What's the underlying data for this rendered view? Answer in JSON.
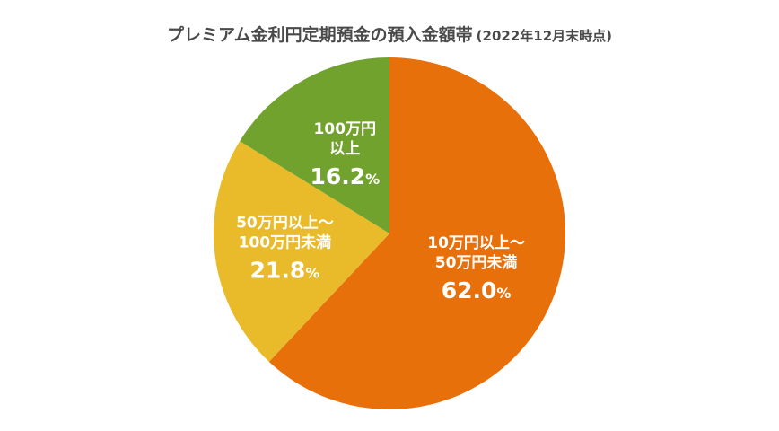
{
  "chart_data": {
    "type": "pie",
    "title": "プレミアム金利円定期預金の預入金額帯",
    "subtitle": "(2022年12月末時点)",
    "slices": [
      {
        "label_lines": [
          "10万円以上～",
          "50万円未満"
        ],
        "value": 62.0,
        "value_text": "62.0",
        "unit": "%",
        "color": "#e8700b"
      },
      {
        "label_lines": [
          "50万円以上～",
          "100万円未満"
        ],
        "value": 21.8,
        "value_text": "21.8",
        "unit": "%",
        "color": "#e9bb2a"
      },
      {
        "label_lines": [
          "100万円",
          "以上"
        ],
        "value": 16.2,
        "value_text": "16.2",
        "unit": "%",
        "color": "#72a22e"
      }
    ],
    "start": "12 o'clock",
    "direction": "clockwise",
    "legend": "none"
  }
}
